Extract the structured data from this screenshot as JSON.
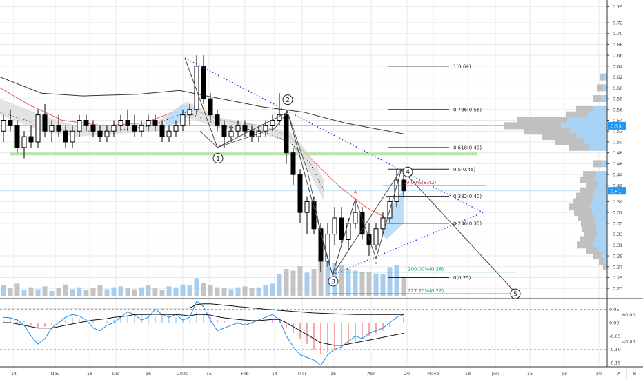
{
  "chart_data": {
    "type": "candlestick",
    "price_axis": {
      "ticks": [
        "0.75",
        "0.72",
        "0.70",
        "0.68",
        "0.66",
        "0.64",
        "0.62",
        "0.60",
        "0.58",
        "0.56",
        "0.54",
        "0.52",
        "0.50",
        "0.48",
        "0.46",
        "0.44",
        "0.42",
        "0.39",
        "0.37",
        "0.35",
        "0.33",
        "0.31",
        "0.29",
        "0.27",
        "0.25",
        "0.23"
      ],
      "ylim": [
        0.215,
        0.762
      ]
    },
    "price_labels": [
      {
        "id": "p053",
        "text": "0.53",
        "value": 0.53,
        "bg": "#2196f3"
      },
      {
        "id": "p041",
        "text": "0.41",
        "value": 0.41,
        "bg": "#2196f3"
      }
    ],
    "x_axis": {
      "ticks": [
        "14",
        "Nov",
        "18",
        "Dic",
        "16",
        "2020",
        "15",
        "Feb",
        "14",
        "Mar",
        "16",
        "Abr",
        "20",
        "Mayo",
        "18",
        "Jun",
        "15",
        "Jul",
        "20"
      ],
      "ab": [
        "A",
        "B"
      ]
    },
    "candles": [
      [
        0.52,
        0.55,
        0.5,
        0.54
      ],
      [
        0.54,
        0.56,
        0.52,
        0.53
      ],
      [
        0.53,
        0.54,
        0.48,
        0.49
      ],
      [
        0.49,
        0.52,
        0.47,
        0.51
      ],
      [
        0.51,
        0.53,
        0.49,
        0.5
      ],
      [
        0.5,
        0.56,
        0.49,
        0.55
      ],
      [
        0.55,
        0.57,
        0.51,
        0.52
      ],
      [
        0.52,
        0.54,
        0.5,
        0.53
      ],
      [
        0.53,
        0.55,
        0.51,
        0.52
      ],
      [
        0.52,
        0.53,
        0.49,
        0.5
      ],
      [
        0.5,
        0.53,
        0.49,
        0.52
      ],
      [
        0.52,
        0.55,
        0.51,
        0.54
      ],
      [
        0.54,
        0.55,
        0.52,
        0.53
      ],
      [
        0.53,
        0.54,
        0.51,
        0.52
      ],
      [
        0.52,
        0.53,
        0.5,
        0.51
      ],
      [
        0.51,
        0.53,
        0.5,
        0.52
      ],
      [
        0.52,
        0.54,
        0.51,
        0.53
      ],
      [
        0.53,
        0.55,
        0.52,
        0.54
      ],
      [
        0.54,
        0.56,
        0.52,
        0.53
      ],
      [
        0.53,
        0.55,
        0.51,
        0.52
      ],
      [
        0.52,
        0.54,
        0.51,
        0.53
      ],
      [
        0.53,
        0.55,
        0.52,
        0.54
      ],
      [
        0.54,
        0.55,
        0.52,
        0.53
      ],
      [
        0.53,
        0.54,
        0.5,
        0.51
      ],
      [
        0.51,
        0.53,
        0.5,
        0.52
      ],
      [
        0.52,
        0.54,
        0.51,
        0.53
      ],
      [
        0.53,
        0.56,
        0.52,
        0.55
      ],
      [
        0.55,
        0.57,
        0.53,
        0.56
      ],
      [
        0.56,
        0.66,
        0.55,
        0.64
      ],
      [
        0.64,
        0.66,
        0.57,
        0.58
      ],
      [
        0.58,
        0.59,
        0.54,
        0.55
      ],
      [
        0.55,
        0.56,
        0.52,
        0.53
      ],
      [
        0.53,
        0.54,
        0.49,
        0.51
      ],
      [
        0.51,
        0.53,
        0.5,
        0.52
      ],
      [
        0.52,
        0.54,
        0.51,
        0.53
      ],
      [
        0.53,
        0.54,
        0.51,
        0.52
      ],
      [
        0.52,
        0.53,
        0.5,
        0.51
      ],
      [
        0.51,
        0.53,
        0.5,
        0.52
      ],
      [
        0.52,
        0.54,
        0.51,
        0.53
      ],
      [
        0.53,
        0.55,
        0.52,
        0.54
      ],
      [
        0.54,
        0.59,
        0.53,
        0.55
      ],
      [
        0.55,
        0.56,
        0.46,
        0.48
      ],
      [
        0.48,
        0.49,
        0.42,
        0.44
      ],
      [
        0.44,
        0.45,
        0.35,
        0.37
      ],
      [
        0.37,
        0.4,
        0.33,
        0.39
      ],
      [
        0.39,
        0.4,
        0.33,
        0.34
      ],
      [
        0.34,
        0.35,
        0.26,
        0.28
      ],
      [
        0.28,
        0.35,
        0.27,
        0.33
      ],
      [
        0.33,
        0.38,
        0.31,
        0.36
      ],
      [
        0.36,
        0.38,
        0.31,
        0.32
      ],
      [
        0.32,
        0.36,
        0.3,
        0.35
      ],
      [
        0.35,
        0.39,
        0.34,
        0.37
      ],
      [
        0.37,
        0.38,
        0.32,
        0.33
      ],
      [
        0.33,
        0.35,
        0.29,
        0.31
      ],
      [
        0.31,
        0.35,
        0.3,
        0.34
      ],
      [
        0.34,
        0.37,
        0.33,
        0.36
      ],
      [
        0.36,
        0.4,
        0.35,
        0.39
      ],
      [
        0.39,
        0.45,
        0.38,
        0.43
      ],
      [
        0.43,
        0.45,
        0.4,
        0.41
      ]
    ],
    "volume": [
      12,
      9,
      14,
      7,
      10,
      8,
      11,
      6,
      9,
      13,
      8,
      10,
      7,
      9,
      12,
      8,
      10,
      11,
      9,
      8,
      10,
      12,
      9,
      7,
      11,
      10,
      13,
      12,
      20,
      15,
      12,
      10,
      9,
      8,
      10,
      11,
      9,
      10,
      12,
      14,
      24,
      30,
      28,
      33,
      26,
      30,
      55,
      40,
      36,
      34,
      30,
      28,
      27,
      26,
      25,
      24,
      32,
      34,
      22
    ],
    "volume_up": [
      true,
      false,
      false,
      true,
      false,
      true,
      false,
      true,
      false,
      false,
      true,
      true,
      false,
      false,
      false,
      true,
      true,
      true,
      false,
      false,
      true,
      true,
      false,
      false,
      true,
      true,
      true,
      true,
      true,
      false,
      false,
      false,
      false,
      true,
      true,
      false,
      false,
      true,
      true,
      true,
      true,
      false,
      false,
      false,
      true,
      false,
      false,
      true,
      true,
      false,
      true,
      true,
      false,
      false,
      true,
      true,
      true,
      true,
      false
    ],
    "macd_axis": {
      "ticks": [
        "0.05",
        "0.00",
        "-0.05",
        "-0.10",
        "-0.15"
      ],
      "rsi_ticks": [
        "60.00",
        "40.00"
      ]
    },
    "macd_hist": [
      0.01,
      0.02,
      0.015,
      0.005,
      -0.01,
      -0.02,
      -0.015,
      -0.01,
      0.0,
      0.01,
      0.02,
      0.015,
      0.01,
      0.005,
      0.0,
      0.005,
      0.01,
      0.02,
      0.03,
      0.035,
      0.03,
      0.02,
      0.025,
      0.03,
      0.028,
      0.02,
      0.015,
      0.01,
      0.04,
      0.03,
      0.02,
      0.01,
      0.005,
      0.0,
      -0.005,
      -0.01,
      -0.005,
      0.0,
      0.005,
      0.01,
      0.005,
      -0.02,
      -0.04,
      -0.06,
      -0.08,
      -0.1,
      -0.12,
      -0.11,
      -0.1,
      -0.09,
      -0.08,
      -0.07,
      -0.06,
      -0.05,
      -0.04,
      -0.03,
      -0.015,
      0.0,
      0.02
    ],
    "macd_line": [
      0.02,
      0.018,
      0.01,
      -0.01,
      -0.05,
      -0.08,
      -0.06,
      -0.02,
      0.0,
      0.02,
      0.03,
      0.025,
      0.01,
      -0.02,
      -0.03,
      -0.01,
      0.0,
      0.02,
      0.04,
      0.03,
      0.01,
      0.02,
      0.05,
      0.03,
      0.02,
      0.03,
      0.01,
      0.02,
      0.08,
      0.06,
      0.01,
      -0.03,
      -0.02,
      -0.01,
      0.0,
      -0.01,
      0.0,
      0.01,
      0.02,
      0.03,
      0.01,
      -0.05,
      -0.09,
      -0.12,
      -0.13,
      -0.14,
      -0.16,
      -0.12,
      -0.1,
      -0.09,
      -0.07,
      -0.05,
      -0.06,
      -0.04,
      -0.03,
      -0.02,
      0.0,
      0.02,
      0.03
    ],
    "macd_signal": [
      0.0,
      0.0,
      -0.005,
      -0.01,
      -0.015,
      -0.02,
      -0.02,
      -0.02,
      -0.015,
      -0.01,
      -0.005,
      0.0,
      0.005,
      0.01,
      0.012,
      0.015,
      0.02,
      0.022,
      0.025,
      0.03,
      0.03,
      0.03,
      0.031,
      0.03,
      0.03,
      0.03,
      0.028,
      0.025,
      0.03,
      0.03,
      0.028,
      0.022,
      0.018,
      0.015,
      0.012,
      0.01,
      0.008,
      0.008,
      0.01,
      0.012,
      0.012,
      0.0,
      -0.015,
      -0.03,
      -0.045,
      -0.06,
      -0.075,
      -0.08,
      -0.085,
      -0.085,
      -0.08,
      -0.075,
      -0.07,
      -0.065,
      -0.06,
      -0.055,
      -0.05,
      -0.045,
      -0.04
    ],
    "macd_upper_line": [
      0.055,
      0.055,
      0.055,
      0.055,
      0.055,
      0.055,
      0.055,
      0.055,
      0.055,
      0.055,
      0.055,
      0.055,
      0.055,
      0.055,
      0.055,
      0.055,
      0.055,
      0.055,
      0.055,
      0.055,
      0.055,
      0.055,
      0.055,
      0.055,
      0.055,
      0.055,
      0.055,
      0.055,
      0.068,
      0.07,
      0.07,
      0.068,
      0.065,
      0.063,
      0.06,
      0.058,
      0.055,
      0.053,
      0.05,
      0.048,
      0.046,
      0.044,
      0.042,
      0.04,
      0.038,
      0.036,
      0.035,
      0.034,
      0.033,
      0.032,
      0.031,
      0.03,
      0.03,
      0.03,
      0.03,
      0.03,
      0.03,
      0.03,
      0.03
    ],
    "fib_levels": [
      {
        "label": "1(0.64)",
        "value": 0.64
      },
      {
        "label": "0.786(0.56)",
        "value": 0.56
      },
      {
        "label": "0.618(0.49)",
        "value": 0.49
      },
      {
        "label": "0.5(0.45)",
        "value": 0.45
      },
      {
        "label": "0.382(0.40)",
        "value": 0.4
      },
      {
        "label": "0.236(0.35)",
        "value": 0.35
      },
      {
        "label": "0(0.25)",
        "value": 0.25
      }
    ],
    "ext_levels": [
      {
        "label": "100.00%(0.42)",
        "value": 0.42,
        "color": "#e91e63"
      },
      {
        "label": "200.00%(0.26)",
        "value": 0.26,
        "color": "#009688"
      },
      {
        "label": "227.20%(0.22)",
        "value": 0.22,
        "color": "#009688"
      }
    ],
    "wave_labels": [
      "1",
      "2",
      "3",
      "4",
      "5"
    ],
    "pattern_labels": [
      "A",
      "B"
    ],
    "volume_profile": [
      {
        "price": 0.62,
        "size": 10
      },
      {
        "price": 0.6,
        "size": 14
      },
      {
        "price": 0.58,
        "size": 20
      },
      {
        "price": 0.56,
        "size": 45
      },
      {
        "price": 0.55,
        "size": 60
      },
      {
        "price": 0.54,
        "size": 130
      },
      {
        "price": 0.53,
        "size": 150
      },
      {
        "price": 0.52,
        "size": 120
      },
      {
        "price": 0.51,
        "size": 95
      },
      {
        "price": 0.5,
        "size": 75
      },
      {
        "price": 0.49,
        "size": 55
      },
      {
        "price": 0.46,
        "size": 20
      },
      {
        "price": 0.44,
        "size": 35
      },
      {
        "price": 0.43,
        "size": 40
      },
      {
        "price": 0.42,
        "size": 30
      },
      {
        "price": 0.41,
        "size": 40
      },
      {
        "price": 0.4,
        "size": 45
      },
      {
        "price": 0.39,
        "size": 50
      },
      {
        "price": 0.38,
        "size": 55
      },
      {
        "price": 0.37,
        "size": 48
      },
      {
        "price": 0.36,
        "size": 42
      },
      {
        "price": 0.35,
        "size": 38
      },
      {
        "price": 0.34,
        "size": 36
      },
      {
        "price": 0.33,
        "size": 34
      },
      {
        "price": 0.32,
        "size": 40
      },
      {
        "price": 0.31,
        "size": 44
      },
      {
        "price": 0.3,
        "size": 30
      },
      {
        "price": 0.29,
        "size": 20
      },
      {
        "price": 0.28,
        "size": 12
      },
      {
        "price": 0.27,
        "size": 6
      }
    ],
    "colors": {
      "up": "#ffffff",
      "down": "#000000",
      "grid": "#e9e9ea",
      "blue": "#2196f3",
      "green_support": "#4caf50",
      "fib": "#222222",
      "dotted": "#2e3fd4"
    }
  }
}
